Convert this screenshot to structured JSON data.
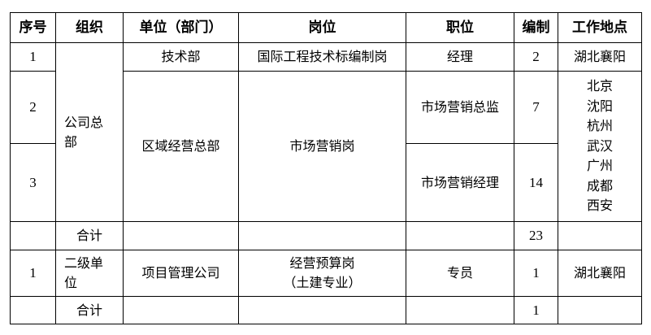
{
  "headers": [
    "序号",
    "组织",
    "单位（部门）",
    "岗位",
    "职位",
    "编制",
    "工作地点"
  ],
  "rows": {
    "r1": {
      "no": "1",
      "org": "公司总部",
      "unit": "技术部",
      "post": "国际工程技术标编制岗",
      "position": "经理",
      "count": "2",
      "location": "湖北襄阳"
    },
    "r2": {
      "no": "2",
      "unit": "区域经营总部",
      "post": "市场营销岗",
      "position": "市场营销总监",
      "count": "7",
      "location": "北京\n沈阳\n杭州\n武汉\n广州\n成都\n西安"
    },
    "r3": {
      "no": "3",
      "position": "市场营销经理",
      "count": "14"
    },
    "sum1": {
      "label": "合计",
      "count": "23"
    },
    "r4": {
      "no": "1",
      "org": "二级单位",
      "unit": "项目管理公司",
      "post": "经营预算岗",
      "post_note": "（土建专业）",
      "position": "专员",
      "count": "1",
      "location": "湖北襄阳"
    },
    "sum2": {
      "label": "合计",
      "count": "1"
    }
  }
}
